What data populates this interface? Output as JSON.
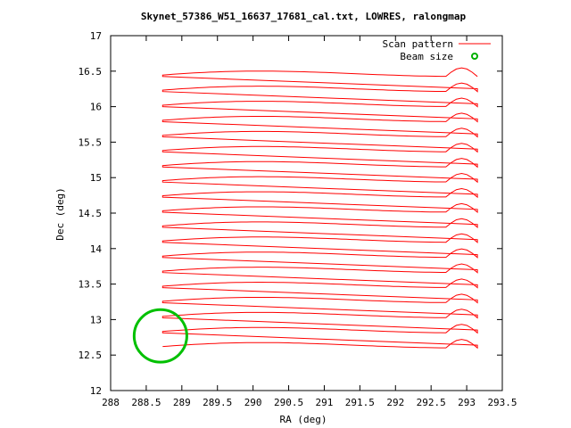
{
  "chart_data": {
    "type": "line",
    "title": "Skynet_57386_W51_16637_17681_cal.txt, LOWRES, ralongmap",
    "xlabel": "RA (deg)",
    "ylabel": "Dec (deg)",
    "xlim": [
      288,
      293.5
    ],
    "ylim": [
      12,
      17
    ],
    "xticks": [
      "288",
      "288.5",
      "289",
      "289.5",
      "290",
      "290.5",
      "291",
      "291.5",
      "292",
      "292.5",
      "293",
      "293.5"
    ],
    "yticks": [
      "12",
      "12.5",
      "13",
      "13.5",
      "14",
      "14.5",
      "15",
      "15.5",
      "16",
      "16.5",
      "17"
    ],
    "legend_position": "top-right",
    "legend": [
      {
        "label": "Scan pattern",
        "color": "#ff0000"
      },
      {
        "label": "Beam size",
        "color": "#00b000"
      }
    ],
    "scan_pattern": {
      "color": "#ff0000",
      "ra_start": 288.73,
      "ra_end": 293.15,
      "dec_start": 12.62,
      "dec_end": 16.44,
      "num_rows": 19,
      "row_step_dec": 0.2125
    },
    "beam": {
      "color": "#00c000",
      "center_ra": 288.7,
      "center_dec": 12.77,
      "radius_deg": 0.37
    }
  }
}
